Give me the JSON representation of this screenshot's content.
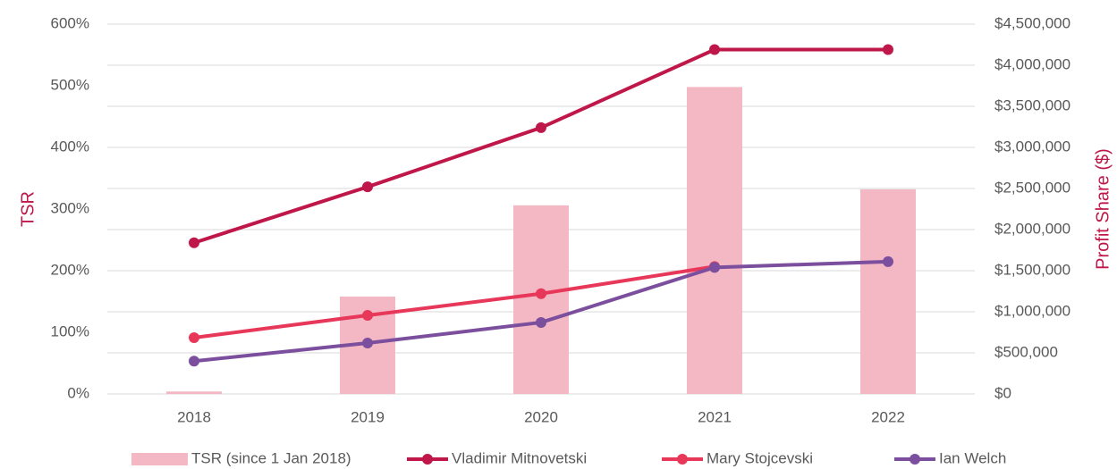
{
  "chart_data": {
    "type": "bar-line",
    "categories": [
      "2018",
      "2019",
      "2020",
      "2021",
      "2022"
    ],
    "y_label": "TSR",
    "y2_label": "Profit Share ($)",
    "axis_label_color": "#c0174a",
    "series": [
      {
        "name": "TSR (since 1 Jan 2018)",
        "type": "bar",
        "color": "#f4b8c4",
        "values": [
          4,
          158,
          306,
          498,
          332
        ]
      },
      {
        "name": "Vladimir Mitnovetski",
        "type": "line",
        "axis": "y2",
        "color": "#c0174a",
        "values": [
          1840000,
          2520000,
          3240000,
          4190000,
          4190000
        ]
      },
      {
        "name": "Mary Stojcevski",
        "type": "line",
        "axis": "y2",
        "color": "#e8385a",
        "values": [
          685000,
          957000,
          1220000,
          1550000,
          null
        ]
      },
      {
        "name": "Ian Welch",
        "type": "line",
        "axis": "y2",
        "color": "#7b4f9d",
        "values": [
          400000,
          620000,
          870000,
          1540000,
          1610000
        ]
      }
    ],
    "ylim": [
      0,
      600
    ],
    "yticks": [
      {
        "value": 0,
        "label": "0%"
      },
      {
        "value": 100,
        "label": "100%"
      },
      {
        "value": 200,
        "label": "200%"
      },
      {
        "value": 300,
        "label": "300%"
      },
      {
        "value": 400,
        "label": "400%"
      },
      {
        "value": 500,
        "label": "500%"
      },
      {
        "value": 600,
        "label": "600%"
      }
    ],
    "y2lim": [
      0,
      4500000
    ],
    "y2ticks": [
      {
        "value": 0,
        "label": "$0"
      },
      {
        "value": 500000,
        "label": "$500,000"
      },
      {
        "value": 1000000,
        "label": "$1,000,000"
      },
      {
        "value": 1500000,
        "label": "$1,500,000"
      },
      {
        "value": 2000000,
        "label": "$2,000,000"
      },
      {
        "value": 2500000,
        "label": "$2,500,000"
      },
      {
        "value": 3000000,
        "label": "$3,000,000"
      },
      {
        "value": 3500000,
        "label": "$3,500,000"
      },
      {
        "value": 4000000,
        "label": "$4,000,000"
      },
      {
        "value": 4500000,
        "label": "$4,500,000"
      }
    ],
    "grid": true,
    "legend": "bottom"
  }
}
